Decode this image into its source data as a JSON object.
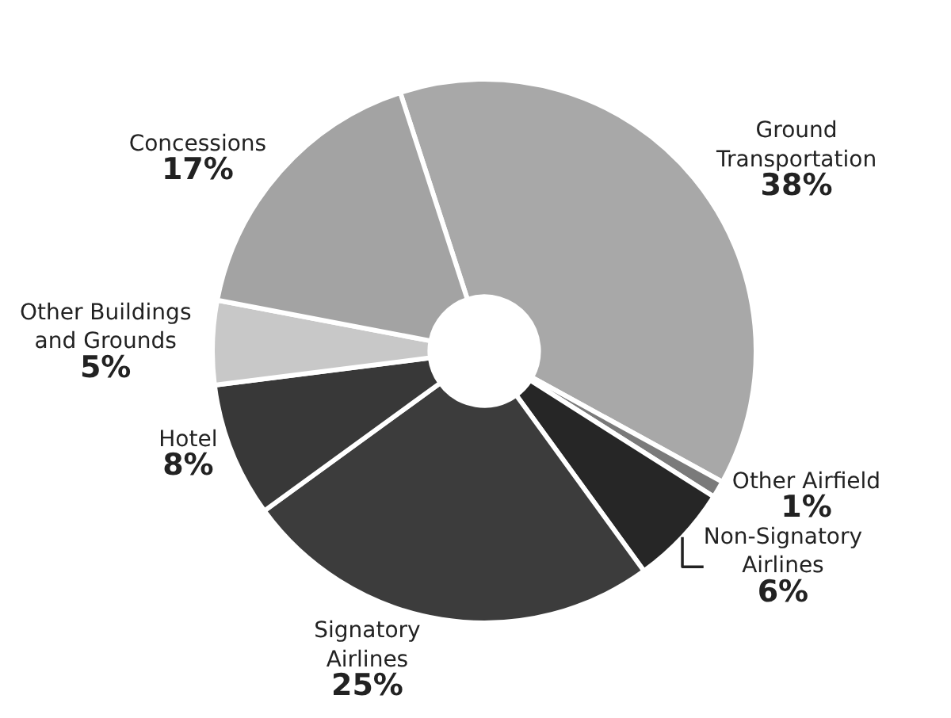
{
  "chart_data": {
    "type": "donut",
    "categories": [
      "Ground\nTransportation",
      "Other Airfield",
      "Non-Signatory\nAirlines",
      "Signatory\nAirlines",
      "Hotel",
      "Other Buildings\nand Grounds",
      "Concessions"
    ],
    "values": [
      38,
      1,
      6,
      25,
      8,
      5,
      17
    ],
    "colors": [
      "#a8a8a8",
      "#7a7a7a",
      "#262626",
      "#3c3c3c",
      "#383838",
      "#c8c8c8",
      "#a3a3a3"
    ],
    "value_labels": [
      "38%",
      "1%",
      "6%",
      "25%",
      "8%",
      "5%",
      "17%"
    ],
    "legend": false
  }
}
